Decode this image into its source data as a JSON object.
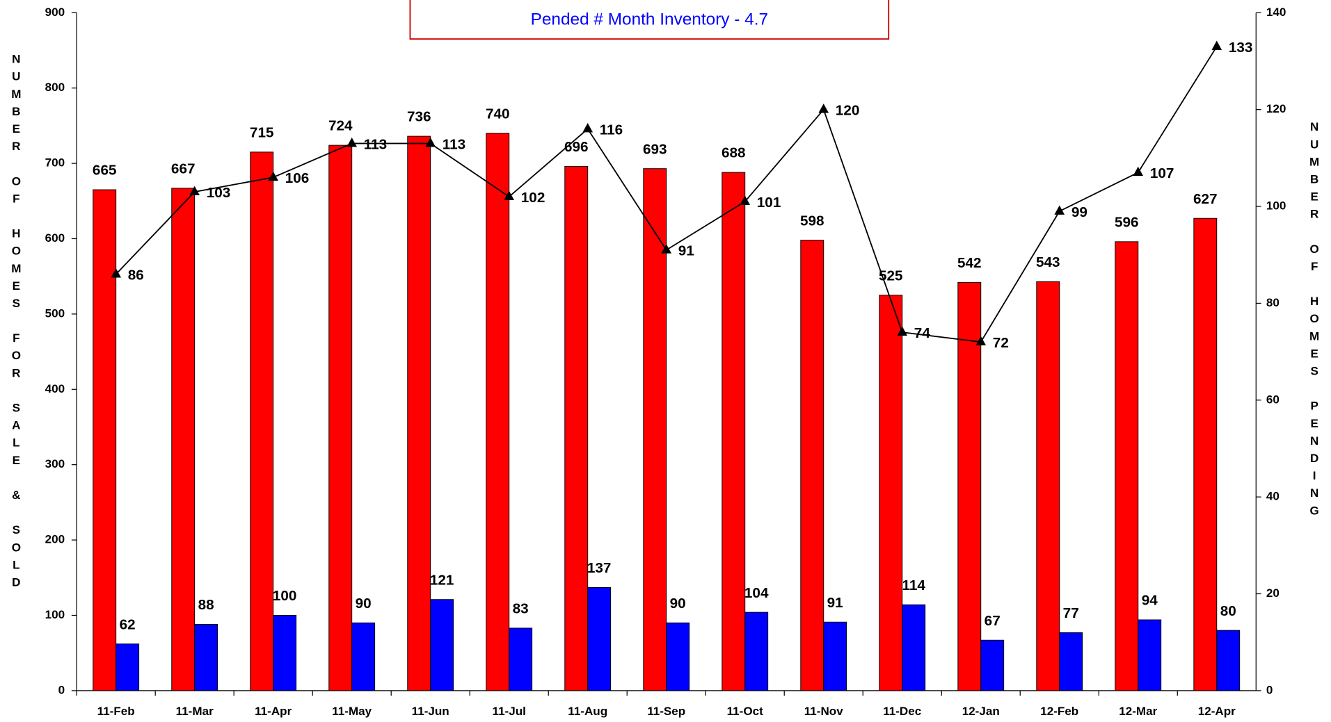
{
  "chart_data": {
    "type": "bar-line",
    "subtitle": "Pended # Month Inventory - 4.7",
    "ylabel": "NUMBER OF HOMES FOR SALE & SOLD",
    "y2label": "NUMBER OF HOMES PENDING",
    "categories": [
      "11-Feb",
      "11-Mar",
      "11-Apr",
      "11-May",
      "11-Jun",
      "11-Jul",
      "11-Aug",
      "11-Sep",
      "11-Oct",
      "11-Nov",
      "11-Dec",
      "12-Jan",
      "12-Feb",
      "12-Mar",
      "12-Apr"
    ],
    "series": [
      {
        "color": "#ff0000",
        "values": [
          665,
          667,
          715,
          724,
          736,
          740,
          696,
          693,
          688,
          598,
          525,
          542,
          543,
          596,
          627
        ]
      },
      {
        "color": "#0000ff",
        "values": [
          62,
          88,
          100,
          90,
          121,
          83,
          137,
          90,
          104,
          91,
          114,
          67,
          77,
          94,
          80
        ]
      },
      {
        "color": "#000000",
        "axis": "y2",
        "values": [
          86,
          103,
          106,
          113,
          113,
          102,
          116,
          91,
          101,
          120,
          74,
          72,
          99,
          107,
          133
        ]
      }
    ],
    "ylim": [
      0,
      900
    ],
    "yticks": [
      0,
      100,
      200,
      300,
      400,
      500,
      600,
      700,
      800,
      900
    ],
    "y2lim": [
      0,
      140
    ],
    "y2ticks": [
      0,
      20,
      40,
      60,
      80,
      100,
      120,
      140
    ]
  }
}
